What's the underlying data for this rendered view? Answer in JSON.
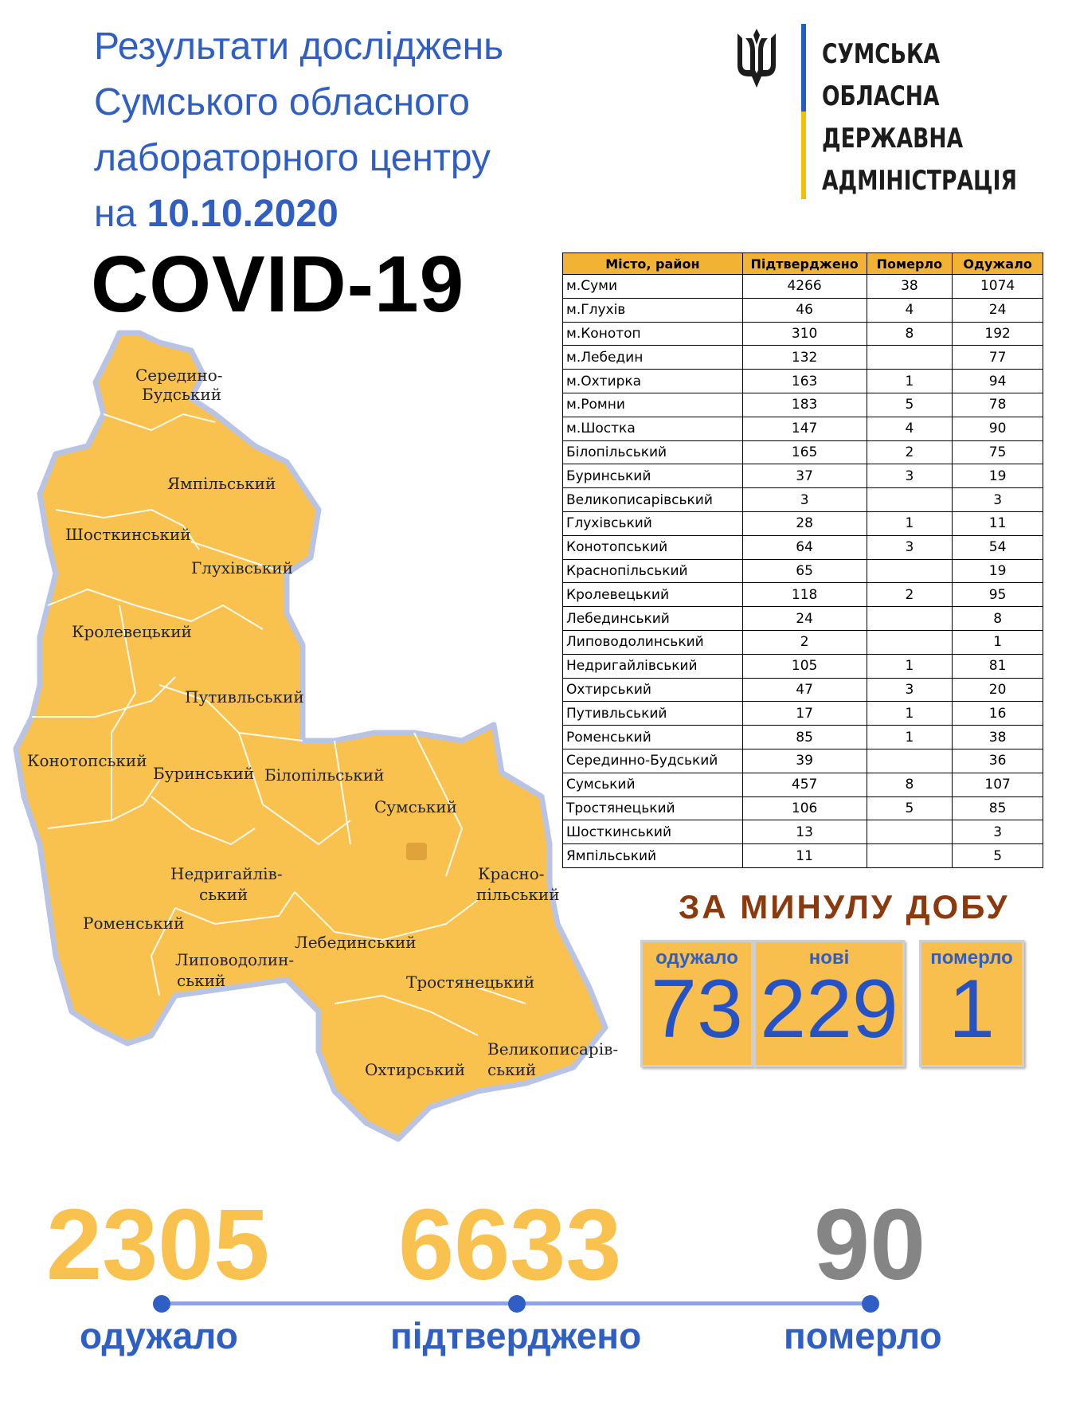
{
  "title": {
    "line1": "Результати досліджень",
    "line2": "Сумського обласного",
    "line3": "лабораторного центру",
    "line4_prefix": "на ",
    "date": "10.10.2020"
  },
  "headline": "COVID-19",
  "logo": {
    "icon": "trident-icon",
    "line1": "СУМСЬКА",
    "line2": "ОБЛАСНА",
    "line3": "ДЕРЖАВНА",
    "line4": "АДМІНІСТРАЦІЯ"
  },
  "table": {
    "headers": [
      "Місто, район",
      "Підтверджено",
      "Померло",
      "Одужало"
    ],
    "rows": [
      [
        "м.Суми",
        "4266",
        "38",
        "1074"
      ],
      [
        "м.Глухів",
        "46",
        "4",
        "24"
      ],
      [
        "м.Конотоп",
        "310",
        "8",
        "192"
      ],
      [
        "м.Лебедин",
        "132",
        "",
        "77"
      ],
      [
        "м.Охтирка",
        "163",
        "1",
        "94"
      ],
      [
        "м.Ромни",
        "183",
        "5",
        "78"
      ],
      [
        "м.Шостка",
        "147",
        "4",
        "90"
      ],
      [
        "Білопільський",
        "165",
        "2",
        "75"
      ],
      [
        "Буринський",
        "37",
        "3",
        "19"
      ],
      [
        "Великописарівський",
        "3",
        "",
        "3"
      ],
      [
        "Глухівський",
        "28",
        "1",
        "11"
      ],
      [
        "Конотопський",
        "64",
        "3",
        "54"
      ],
      [
        "Краснопільський",
        "65",
        "",
        "19"
      ],
      [
        "Кролевецький",
        "118",
        "2",
        "95"
      ],
      [
        "Лебединський",
        "24",
        "",
        "8"
      ],
      [
        "Липоводолинський",
        "2",
        "",
        "1"
      ],
      [
        "Недригайлівський",
        "105",
        "1",
        "81"
      ],
      [
        "Охтирський",
        "47",
        "3",
        "20"
      ],
      [
        "Путивльський",
        "17",
        "1",
        "16"
      ],
      [
        "Роменський",
        "85",
        "1",
        "38"
      ],
      [
        "Серединно-Будський",
        "39",
        "",
        "36"
      ],
      [
        "Сумський",
        "457",
        "8",
        "107"
      ],
      [
        "Тростянецький",
        "106",
        "5",
        "85"
      ],
      [
        "Шосткинський",
        "13",
        "",
        "3"
      ],
      [
        "Ямпільський",
        "11",
        "",
        "5"
      ]
    ]
  },
  "map_labels": {
    "seredyno_1": "Середино-",
    "seredyno_2": "Будський",
    "yampil": "Ямпільський",
    "shostka": "Шосткинський",
    "hlukhiv": "Глухівський",
    "krolevets": "Кролевецький",
    "putyvl": "Путивльський",
    "konotop": "Конотопський",
    "buryn": "Буринський",
    "bilopillia": "Білопільський",
    "sumy": "Сумський",
    "nedryhailiv_1": "Недригайлів-",
    "nedryhailiv_2": "ський",
    "krasnopillia_1": "Красно-",
    "krasnopillia_2": "пільський",
    "romny": "Роменський",
    "lypova_1": "Липоводолин-",
    "lypova_2": "ський",
    "lebedyn": "Лебединський",
    "trostianets": "Тростянецький",
    "okhtyrka": "Охтирський",
    "velykopysarivka_1": "Великописарів-",
    "velykopysarivka_2": "ський"
  },
  "daily": {
    "title": "ЗА МИНУЛУ ДОБУ",
    "recovered_label": "одужало",
    "recovered_value": "73",
    "new_label": "нові",
    "new_value": "229",
    "died_label": "померло",
    "died_value": "1"
  },
  "totals": {
    "recovered_value": "2305",
    "recovered_label": "одужало",
    "confirmed_value": "6633",
    "confirmed_label": "підтверджено",
    "died_value": "90",
    "died_label": "померло"
  },
  "colors": {
    "accent_blue": "#2f5fc4",
    "map_fill": "#f9c24f",
    "header_fill": "#f2b233",
    "daily_title": "#8b3a0e",
    "grey": "#858585"
  }
}
